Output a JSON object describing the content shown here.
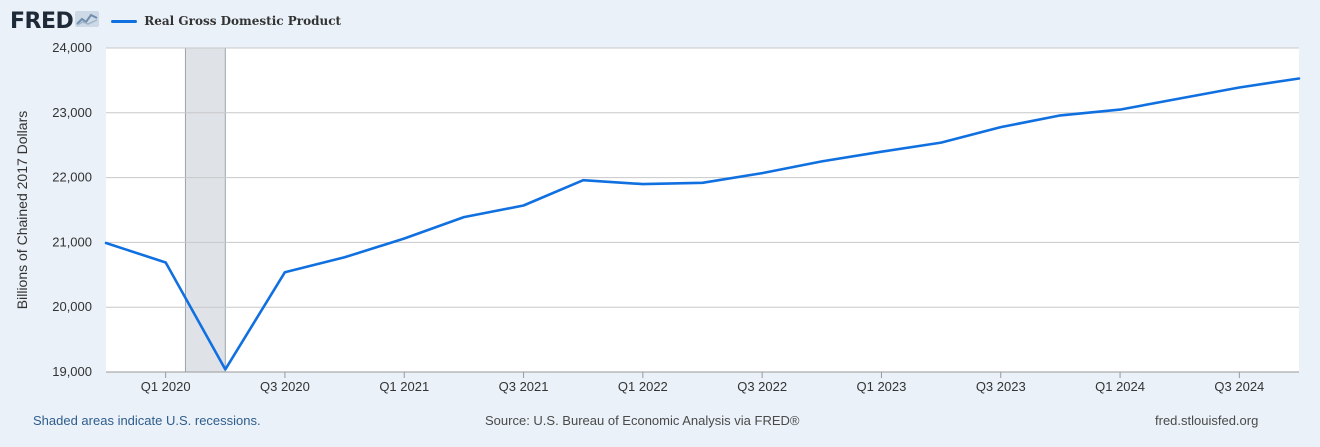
{
  "header": {
    "logo_text": "FRED",
    "legend_label": "Real Gross Domestic Product"
  },
  "footer": {
    "recession_note": "Shaded areas indicate U.S. recessions.",
    "source": "Source: U.S. Bureau of Economic Analysis via FRED®",
    "site": "fred.stlouisfed.org"
  },
  "colors": {
    "line": "#1170e0",
    "recession": "#dfe3e8",
    "background": "#eaf1f8"
  },
  "chart_data": {
    "type": "line",
    "title": "",
    "xlabel": "",
    "ylabel": "Billions of Chained 2017 Dollars",
    "ylim": [
      19000,
      24000
    ],
    "xlim": [
      2019.75,
      2024.75
    ],
    "grid": true,
    "legend": "top-left",
    "yticks": [
      19000,
      20000,
      21000,
      22000,
      23000,
      24000
    ],
    "ytick_labels": [
      "19,000",
      "20,000",
      "21,000",
      "22,000",
      "23,000",
      "24,000"
    ],
    "xticks": [
      {
        "x": 2020.0,
        "label": "Q1 2020"
      },
      {
        "x": 2020.5,
        "label": "Q3 2020"
      },
      {
        "x": 2021.0,
        "label": "Q1 2021"
      },
      {
        "x": 2021.5,
        "label": "Q3 2021"
      },
      {
        "x": 2022.0,
        "label": "Q1 2022"
      },
      {
        "x": 2022.5,
        "label": "Q3 2022"
      },
      {
        "x": 2023.0,
        "label": "Q1 2023"
      },
      {
        "x": 2023.5,
        "label": "Q3 2023"
      },
      {
        "x": 2024.0,
        "label": "Q1 2024"
      },
      {
        "x": 2024.5,
        "label": "Q3 2024"
      }
    ],
    "recessions": [
      {
        "start": 2020.083,
        "end": 2020.25
      }
    ],
    "series": [
      {
        "name": "Real Gross Domestic Product",
        "x": [
          2019.75,
          2020.0,
          2020.25,
          2020.5,
          2020.75,
          2021.0,
          2021.25,
          2021.5,
          2021.75,
          2022.0,
          2022.25,
          2022.5,
          2022.75,
          2023.0,
          2023.25,
          2023.5,
          2023.75,
          2024.0,
          2024.25,
          2024.5,
          2024.75
        ],
        "values": [
          20990,
          20690,
          19040,
          20540,
          20770,
          21060,
          21390,
          21570,
          21960,
          21900,
          21920,
          22070,
          22250,
          22400,
          22540,
          22780,
          22960,
          23050,
          23220,
          23390,
          23530
        ]
      }
    ]
  }
}
